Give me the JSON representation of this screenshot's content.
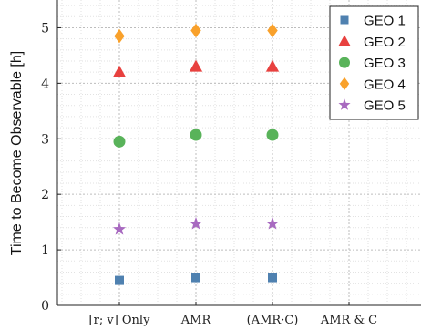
{
  "chart_data": {
    "type": "scatter",
    "title": "",
    "xlabel": "",
    "ylabel": "Time to Become Observable [h]",
    "categories": [
      "[r; v] Only",
      "AMR",
      "(AMR·C)",
      "AMR & C"
    ],
    "ylim": [
      0,
      5.5
    ],
    "yticks": [
      0,
      1,
      2,
      3,
      4,
      5
    ],
    "grid": true,
    "legend_position": "top-right",
    "series": [
      {
        "name": "GEO 1",
        "marker": "square",
        "color": "#4f81b0",
        "values": [
          0.45,
          0.5,
          0.5,
          null
        ]
      },
      {
        "name": "GEO 2",
        "marker": "triangle",
        "color": "#e8413f",
        "values": [
          4.2,
          4.3,
          4.3,
          null
        ]
      },
      {
        "name": "GEO 3",
        "marker": "circle",
        "color": "#59b35a",
        "values": [
          2.95,
          3.07,
          3.07,
          null
        ]
      },
      {
        "name": "GEO 4",
        "marker": "diamond",
        "color": "#f9a12b",
        "values": [
          4.85,
          4.95,
          4.95,
          null
        ]
      },
      {
        "name": "GEO 5",
        "marker": "star",
        "color": "#a86ac0",
        "values": [
          1.37,
          1.47,
          1.47,
          null
        ]
      }
    ]
  }
}
